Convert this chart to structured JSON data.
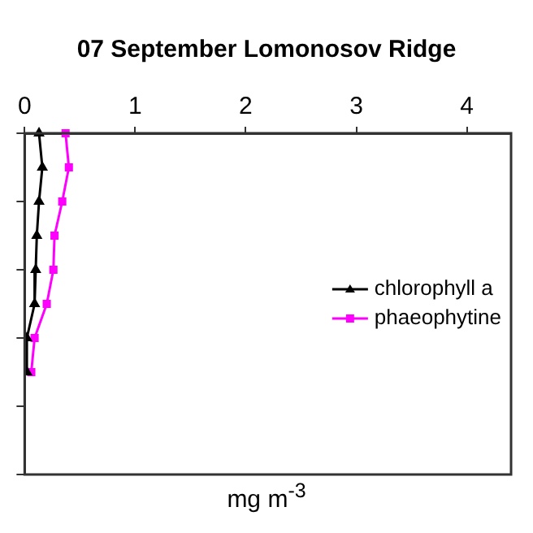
{
  "chart_data": {
    "type": "line",
    "title": "07 September Lomonosov Ridge",
    "xlabel": "mg m$^{-3}$",
    "categories": [
      null,
      null,
      null,
      null,
      null,
      null,
      null,
      null,
      null,
      null,
      null
    ],
    "orientation": "horizontal",
    "xlim": [
      0,
      4.4
    ],
    "xticks": [
      0,
      1,
      2,
      3,
      4
    ],
    "tick_labels": "x",
    "grid": false,
    "legend": "right",
    "line_style": "solid",
    "series": [
      {
        "name": "chlorophyll a",
        "color": "#000000",
        "marker": "triangle",
        "values": [
          0.13,
          0.16,
          0.13,
          0.11,
          0.1,
          0.09,
          0.02,
          0.02,
          null,
          null,
          null
        ]
      },
      {
        "name": "phaeophytine",
        "color": "#ff00ff",
        "marker": "square",
        "values": [
          0.37,
          0.4,
          0.34,
          0.27,
          0.26,
          0.2,
          0.09,
          0.06,
          null,
          null,
          null
        ]
      }
    ]
  }
}
